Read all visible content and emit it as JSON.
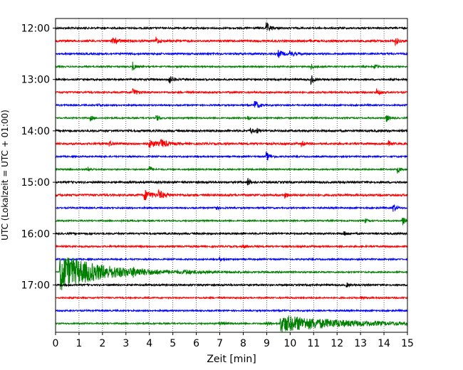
{
  "chart_data": {
    "type": "line",
    "title": "",
    "xlabel": "Zeit  [min]",
    "ylabel": "UTC (Lokalzeit = UTC + 01:00)",
    "x_range": [
      0,
      15
    ],
    "x_ticks": [
      0,
      1,
      2,
      3,
      4,
      5,
      6,
      7,
      8,
      9,
      10,
      11,
      12,
      13,
      14,
      15
    ],
    "y_tick_labels": [
      "12:00",
      "13:00",
      "14:00",
      "15:00",
      "16:00",
      "17:00"
    ],
    "grid": "vertical dotted lines at each minute",
    "legend": "none",
    "trace_start": "12:00",
    "trace_interval_min": 15,
    "trace_colors": [
      "#000000",
      "#ff0000",
      "#0000ff",
      "#008000"
    ],
    "traces": [
      {
        "start": "12:00",
        "noise": 1.2,
        "events": [
          [
            9.0,
            7,
            0.15
          ]
        ]
      },
      {
        "start": "12:15",
        "noise": 1.4,
        "events": [
          [
            2.4,
            4,
            0.3
          ],
          [
            4.3,
            5,
            0.1
          ],
          [
            14.5,
            6,
            0.1
          ]
        ]
      },
      {
        "start": "12:30",
        "noise": 1.2,
        "events": [
          [
            9.5,
            5,
            0.2
          ],
          [
            10.0,
            3,
            0.2
          ]
        ]
      },
      {
        "start": "12:45",
        "noise": 1.0,
        "events": [
          [
            3.3,
            6,
            0.1
          ],
          [
            10.9,
            4,
            0.1
          ],
          [
            13.6,
            4,
            0.1
          ]
        ]
      },
      {
        "start": "13:00",
        "noise": 1.2,
        "events": [
          [
            4.8,
            8,
            0.15
          ],
          [
            10.9,
            7,
            0.1
          ]
        ]
      },
      {
        "start": "13:15",
        "noise": 1.2,
        "events": [
          [
            3.3,
            6,
            0.15
          ],
          [
            13.7,
            5,
            0.1
          ]
        ]
      },
      {
        "start": "13:30",
        "noise": 1.0,
        "events": [
          [
            1.8,
            3,
            0.1
          ],
          [
            8.5,
            7,
            0.15
          ]
        ]
      },
      {
        "start": "13:45",
        "noise": 1.0,
        "events": [
          [
            1.5,
            4,
            0.1
          ],
          [
            4.3,
            5,
            0.1
          ],
          [
            8.2,
            3,
            0.1
          ],
          [
            14.1,
            6,
            0.1
          ]
        ]
      },
      {
        "start": "14:00",
        "noise": 1.4,
        "events": [
          [
            8.3,
            4,
            0.1
          ],
          [
            8.6,
            3,
            0.1
          ]
        ]
      },
      {
        "start": "14:15",
        "noise": 1.4,
        "events": [
          [
            2.3,
            3,
            0.15
          ],
          [
            4.0,
            5,
            0.3
          ],
          [
            4.5,
            5,
            0.25
          ],
          [
            10.5,
            4,
            0.1
          ],
          [
            14.2,
            3,
            0.1
          ]
        ]
      },
      {
        "start": "14:30",
        "noise": 1.0,
        "events": [
          [
            9.0,
            6,
            0.15
          ]
        ]
      },
      {
        "start": "14:45",
        "noise": 1.0,
        "events": [
          [
            1.4,
            3,
            0.1
          ],
          [
            4.0,
            5,
            0.1
          ],
          [
            14.6,
            5,
            0.1
          ]
        ]
      },
      {
        "start": "15:00",
        "noise": 1.4,
        "events": [
          [
            8.2,
            6,
            0.1
          ]
        ]
      },
      {
        "start": "15:15",
        "noise": 1.4,
        "events": [
          [
            3.8,
            7,
            0.3
          ],
          [
            4.4,
            5,
            0.25
          ],
          [
            9.8,
            4,
            0.1
          ]
        ]
      },
      {
        "start": "15:30",
        "noise": 1.0,
        "events": [
          [
            6.8,
            3,
            0.15
          ],
          [
            14.4,
            7,
            0.1
          ]
        ]
      },
      {
        "start": "15:45",
        "noise": 1.0,
        "events": [
          [
            13.2,
            3,
            0.1
          ],
          [
            14.8,
            6,
            0.1
          ]
        ]
      },
      {
        "start": "16:00",
        "noise": 1.2,
        "events": [
          [
            12.3,
            3,
            0.1
          ]
        ]
      },
      {
        "start": "16:15",
        "noise": 1.2,
        "events": [
          [
            8.0,
            2,
            0.2
          ]
        ]
      },
      {
        "start": "16:30",
        "noise": 1.0,
        "events": [
          [
            7.0,
            2,
            0.2
          ]
        ]
      },
      {
        "start": "16:45",
        "noise": 1.0,
        "events": [
          [
            0.2,
            26,
            1.8
          ],
          [
            3.3,
            3,
            0.2
          ],
          [
            5.5,
            2,
            0.3
          ]
        ]
      },
      {
        "start": "17:00",
        "noise": 1.2,
        "events": [
          [
            12.4,
            3,
            0.1
          ]
        ]
      },
      {
        "start": "17:15",
        "noise": 1.0,
        "events": [
          [
            13.0,
            2,
            0.2
          ]
        ]
      },
      {
        "start": "17:30",
        "noise": 1.0,
        "events": []
      },
      {
        "start": "17:45",
        "noise": 1.0,
        "events": [
          [
            9.0,
            3,
            0.15
          ],
          [
            9.6,
            12,
            2.5
          ],
          [
            7.0,
            2,
            0.3
          ]
        ]
      }
    ]
  }
}
